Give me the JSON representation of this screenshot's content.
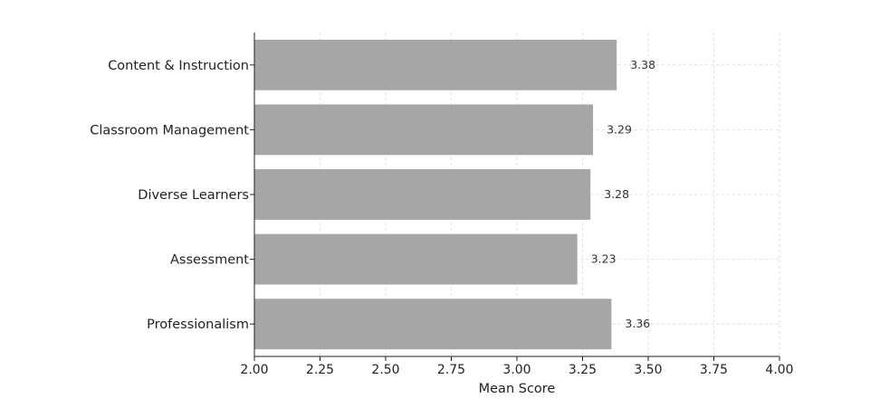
{
  "chart_data": {
    "type": "bar",
    "orientation": "horizontal",
    "categories": [
      "Content & Instruction",
      "Classroom Management",
      "Diverse Learners",
      "Assessment",
      "Professionalism"
    ],
    "values": [
      3.38,
      3.29,
      3.28,
      3.23,
      3.36
    ],
    "value_labels": [
      "3.38",
      "3.29",
      "3.28",
      "3.23",
      "3.36"
    ],
    "xlabel": "Mean Score",
    "ylabel": "",
    "xlim": [
      2.0,
      4.0
    ],
    "x_ticks": [
      "2.00",
      "2.25",
      "2.50",
      "2.75",
      "3.00",
      "3.25",
      "3.50",
      "3.75",
      "4.00"
    ],
    "grid": true,
    "bar_color": "#a6a6a6"
  }
}
